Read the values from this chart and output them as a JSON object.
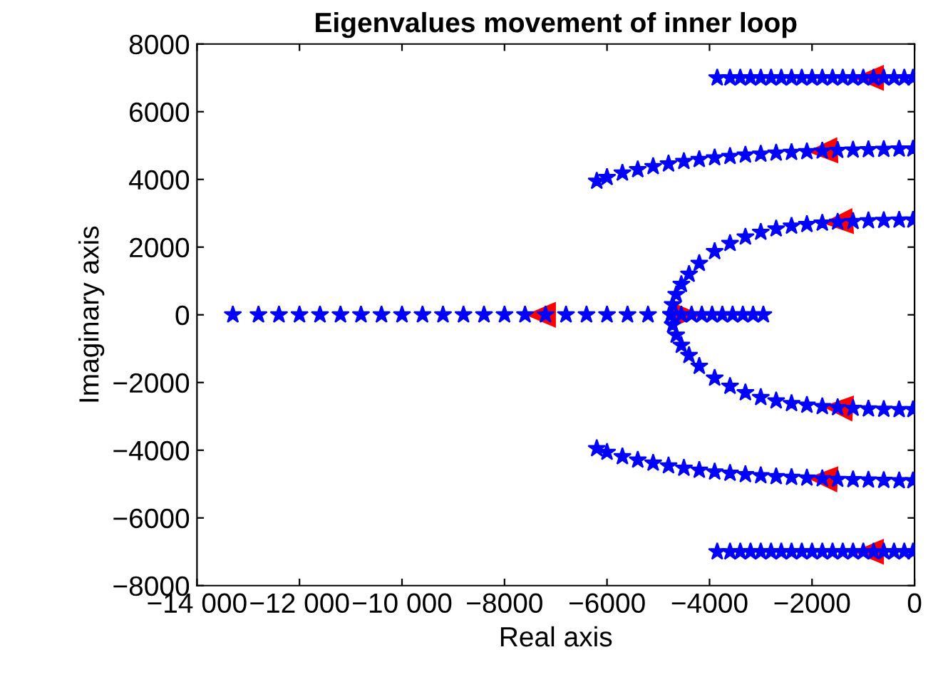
{
  "chart_data": {
    "type": "scatter",
    "title": "Eigenvalues movement of inner loop",
    "xlabel": "Real axis",
    "ylabel": "Imaginary axis",
    "xlim": [
      -14000,
      0
    ],
    "ylim": [
      -8000,
      8000
    ],
    "xticks": [
      {
        "value": -14000,
        "label": "−14 000"
      },
      {
        "value": -12000,
        "label": "−12 000"
      },
      {
        "value": -10000,
        "label": "−10 000"
      },
      {
        "value": -8000,
        "label": "−8000"
      },
      {
        "value": -6000,
        "label": "−6000"
      },
      {
        "value": -4000,
        "label": "−4000"
      },
      {
        "value": -2000,
        "label": "−2000"
      },
      0
    ],
    "yticks": [
      {
        "value": -8000,
        "label": "−8000"
      },
      {
        "value": -6000,
        "label": "−6000"
      },
      {
        "value": -4000,
        "label": "−4000"
      },
      {
        "value": -2000,
        "label": "−2000"
      },
      0,
      2000,
      4000,
      6000,
      8000
    ],
    "marker": "star",
    "grid": false,
    "series": [
      {
        "color": "#0000ff",
        "x": [
          -30,
          -200,
          -400,
          -600,
          -800,
          -1000,
          -1200,
          -1400,
          -1600,
          -1800,
          -2000,
          -2200,
          -2400,
          -2600,
          -2800,
          -3000,
          -3200,
          -3400,
          -3600,
          -3850
        ],
        "values": [
          7000,
          7000,
          7000,
          7000,
          7000,
          7000,
          7000,
          7000,
          7000,
          7000,
          7000,
          7000,
          7000,
          7000,
          7000,
          7000,
          7000,
          7000,
          7000,
          7000
        ]
      },
      {
        "color": "#0000ff",
        "x": [
          -30,
          -300,
          -600,
          -900,
          -1200,
          -1500,
          -1800,
          -2100,
          -2400,
          -2700,
          -3000,
          -3300,
          -3600,
          -3900,
          -4200,
          -4500,
          -4800,
          -5100,
          -5400,
          -5700,
          -6000,
          -6200
        ],
        "values": [
          4900,
          4900,
          4890,
          4880,
          4870,
          4860,
          4840,
          4820,
          4800,
          4780,
          4750,
          4720,
          4680,
          4640,
          4590,
          4530,
          4460,
          4380,
          4290,
          4190,
          4060,
          3950
        ]
      },
      {
        "color": "#0000ff",
        "x": [
          -30,
          -300,
          -600,
          -900,
          -1200,
          -1500,
          -1800,
          -2100,
          -2400,
          -2700,
          -3000,
          -3300,
          -3600,
          -3900,
          -4200,
          -4400,
          -4550,
          -4650,
          -4720,
          -4750
        ],
        "values": [
          2800,
          2800,
          2790,
          2780,
          2760,
          2740,
          2710,
          2670,
          2620,
          2540,
          2440,
          2300,
          2110,
          1870,
          1520,
          1200,
          900,
          600,
          300,
          0
        ]
      },
      {
        "color": "#0000ff",
        "x": [
          -4750,
          -5200,
          -5600,
          -6000,
          -6400,
          -6800,
          -7200,
          -7600,
          -8000,
          -8400,
          -8800,
          -9200,
          -9600,
          -10000,
          -10400,
          -10800,
          -11200,
          -11600,
          -12000,
          -12400,
          -12800,
          -13300
        ],
        "values": [
          0,
          0,
          0,
          0,
          0,
          0,
          0,
          0,
          0,
          0,
          0,
          0,
          0,
          0,
          0,
          0,
          0,
          0,
          0,
          0,
          0,
          0
        ]
      },
      {
        "color": "#0000ff",
        "x": [
          -4750,
          -4550,
          -4350,
          -4150,
          -3950,
          -3750,
          -3550,
          -3350,
          -3150,
          -2950
        ],
        "values": [
          0,
          0,
          0,
          0,
          0,
          0,
          0,
          0,
          0,
          0
        ]
      },
      {
        "color": "#0000ff",
        "x": [
          -30,
          -300,
          -600,
          -900,
          -1200,
          -1500,
          -1800,
          -2100,
          -2400,
          -2700,
          -3000,
          -3300,
          -3600,
          -3900,
          -4200,
          -4400,
          -4550,
          -4650,
          -4720,
          -4750
        ],
        "values": [
          -2800,
          -2800,
          -2790,
          -2780,
          -2760,
          -2740,
          -2710,
          -2670,
          -2620,
          -2540,
          -2440,
          -2300,
          -2110,
          -1870,
          -1520,
          -1200,
          -900,
          -600,
          -300,
          0
        ]
      },
      {
        "color": "#0000ff",
        "x": [
          -30,
          -300,
          -600,
          -900,
          -1200,
          -1500,
          -1800,
          -2100,
          -2400,
          -2700,
          -3000,
          -3300,
          -3600,
          -3900,
          -4200,
          -4500,
          -4800,
          -5100,
          -5400,
          -5700,
          -6000,
          -6200
        ],
        "values": [
          -4900,
          -4900,
          -4890,
          -4880,
          -4870,
          -4860,
          -4840,
          -4820,
          -4800,
          -4780,
          -4750,
          -4720,
          -4680,
          -4640,
          -4590,
          -4530,
          -4460,
          -4380,
          -4290,
          -4190,
          -4060,
          -3950
        ]
      },
      {
        "color": "#0000ff",
        "x": [
          -30,
          -200,
          -400,
          -600,
          -800,
          -1000,
          -1200,
          -1400,
          -1600,
          -1800,
          -2000,
          -2200,
          -2400,
          -2600,
          -2800,
          -3000,
          -3200,
          -3400,
          -3600,
          -3850
        ],
        "values": [
          -7000,
          -7000,
          -7000,
          -7000,
          -7000,
          -7000,
          -7000,
          -7000,
          -7000,
          -7000,
          -7000,
          -7000,
          -7000,
          -7000,
          -7000,
          -7000,
          -7000,
          -7000,
          -7000,
          -7000
        ]
      }
    ]
  }
}
